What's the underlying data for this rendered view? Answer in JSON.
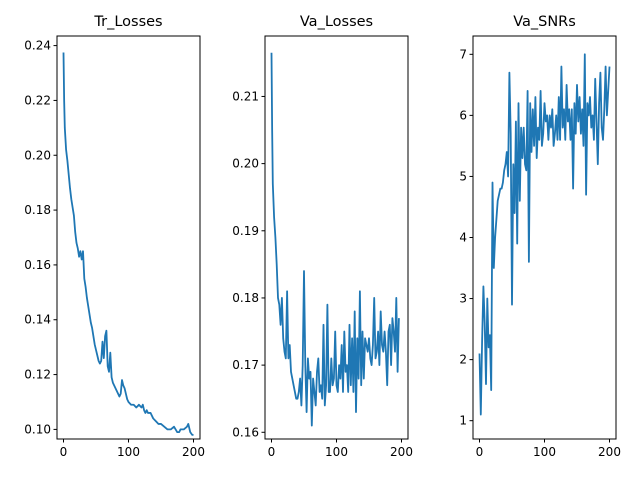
{
  "chart_data": [
    {
      "type": "line",
      "title": "Tr_Losses",
      "xlabel": "",
      "ylabel": "",
      "xlim": [
        -10,
        210
      ],
      "ylim": [
        0.0965,
        0.2435
      ],
      "xticks": [
        0,
        100,
        200
      ],
      "yticks": [
        0.1,
        0.12,
        0.14,
        0.16,
        0.18,
        0.2,
        0.22,
        0.24
      ],
      "ytick_labels": [
        "0.10",
        "0.12",
        "0.14",
        "0.16",
        "0.18",
        "0.20",
        "0.22",
        "0.24"
      ],
      "grid": false,
      "color": "#1f77b4",
      "series": [
        {
          "x": [
            0,
            1,
            2,
            4,
            6,
            8,
            10,
            12,
            14,
            16,
            18,
            20,
            22,
            24,
            26,
            28,
            30,
            32,
            34,
            36,
            38,
            40,
            42,
            44,
            46,
            48,
            50,
            52,
            54,
            56,
            58,
            60,
            62,
            64,
            66,
            68,
            70,
            72,
            74,
            76,
            78,
            80,
            82,
            84,
            86,
            88,
            90,
            92,
            94,
            96,
            98,
            100,
            104,
            108,
            112,
            116,
            120,
            122,
            124,
            126,
            128,
            130,
            134,
            138,
            142,
            146,
            150,
            155,
            160,
            165,
            170,
            175,
            178,
            180,
            185,
            190,
            192,
            195,
            198,
            200
          ],
          "y": [
            0.2375,
            0.22,
            0.21,
            0.202,
            0.198,
            0.193,
            0.188,
            0.184,
            0.181,
            0.178,
            0.172,
            0.168,
            0.166,
            0.163,
            0.165,
            0.162,
            0.165,
            0.155,
            0.152,
            0.148,
            0.145,
            0.142,
            0.139,
            0.137,
            0.134,
            0.131,
            0.129,
            0.127,
            0.125,
            0.124,
            0.125,
            0.132,
            0.126,
            0.134,
            0.136,
            0.123,
            0.121,
            0.128,
            0.119,
            0.117,
            0.116,
            0.115,
            0.114,
            0.113,
            0.112,
            0.113,
            0.118,
            0.116,
            0.115,
            0.113,
            0.111,
            0.11,
            0.109,
            0.109,
            0.108,
            0.109,
            0.108,
            0.109,
            0.107,
            0.106,
            0.107,
            0.106,
            0.106,
            0.104,
            0.103,
            0.102,
            0.102,
            0.101,
            0.1,
            0.1,
            0.101,
            0.099,
            0.099,
            0.1,
            0.1,
            0.101,
            0.102,
            0.099,
            0.098,
            0.098
          ]
        }
      ]
    },
    {
      "type": "line",
      "title": "Va_Losses",
      "xlabel": "",
      "ylabel": "",
      "xlim": [
        -10,
        210
      ],
      "ylim": [
        0.159,
        0.219
      ],
      "xticks": [
        0,
        100,
        200
      ],
      "yticks": [
        0.16,
        0.17,
        0.18,
        0.19,
        0.2,
        0.21
      ],
      "ytick_labels": [
        "0.16",
        "0.17",
        "0.18",
        "0.19",
        "0.20",
        "0.21"
      ],
      "grid": false,
      "color": "#1f77b4",
      "series": [
        {
          "x": [
            0,
            1,
            2,
            4,
            6,
            8,
            10,
            12,
            14,
            16,
            18,
            20,
            22,
            24,
            26,
            28,
            30,
            32,
            34,
            36,
            38,
            40,
            42,
            44,
            46,
            48,
            50,
            52,
            54,
            56,
            58,
            60,
            62,
            64,
            66,
            68,
            70,
            72,
            74,
            76,
            78,
            80,
            82,
            84,
            86,
            88,
            90,
            92,
            94,
            96,
            98,
            100,
            102,
            104,
            106,
            108,
            110,
            112,
            114,
            116,
            118,
            120,
            122,
            124,
            126,
            128,
            130,
            132,
            134,
            136,
            138,
            140,
            142,
            144,
            146,
            148,
            150,
            152,
            154,
            156,
            158,
            160,
            162,
            164,
            166,
            168,
            170,
            172,
            174,
            176,
            178,
            180,
            182,
            184,
            186,
            188,
            190,
            192,
            194,
            196
          ],
          "y": [
            0.2165,
            0.205,
            0.197,
            0.192,
            0.189,
            0.185,
            0.18,
            0.179,
            0.176,
            0.18,
            0.174,
            0.172,
            0.171,
            0.181,
            0.171,
            0.173,
            0.169,
            0.168,
            0.167,
            0.166,
            0.165,
            0.165,
            0.166,
            0.168,
            0.164,
            0.17,
            0.184,
            0.17,
            0.163,
            0.171,
            0.168,
            0.169,
            0.161,
            0.168,
            0.166,
            0.164,
            0.169,
            0.171,
            0.166,
            0.167,
            0.165,
            0.176,
            0.164,
            0.167,
            0.179,
            0.166,
            0.166,
            0.171,
            0.167,
            0.168,
            0.175,
            0.167,
            0.166,
            0.17,
            0.168,
            0.173,
            0.166,
            0.175,
            0.169,
            0.17,
            0.166,
            0.176,
            0.167,
            0.174,
            0.166,
            0.178,
            0.163,
            0.174,
            0.168,
            0.181,
            0.167,
            0.175,
            0.168,
            0.174,
            0.173,
            0.172,
            0.174,
            0.171,
            0.17,
            0.173,
            0.18,
            0.171,
            0.172,
            0.175,
            0.17,
            0.178,
            0.173,
            0.172,
            0.175,
            0.172,
            0.167,
            0.175,
            0.176,
            0.17,
            0.177,
            0.175,
            0.172,
            0.18,
            0.169,
            0.177
          ]
        }
      ]
    },
    {
      "type": "line",
      "title": "Va_SNRs",
      "xlabel": "",
      "ylabel": "",
      "xlim": [
        -10,
        210
      ],
      "ylim": [
        0.7,
        7.3
      ],
      "xticks": [
        0,
        100,
        200
      ],
      "yticks": [
        1,
        2,
        3,
        4,
        5,
        6,
        7
      ],
      "ytick_labels": [
        "1",
        "2",
        "3",
        "4",
        "5",
        "6",
        "7"
      ],
      "grid": false,
      "color": "#1f77b4",
      "series": [
        {
          "x": [
            0,
            2,
            4,
            6,
            8,
            10,
            12,
            14,
            16,
            18,
            20,
            22,
            24,
            26,
            28,
            30,
            32,
            34,
            36,
            38,
            40,
            42,
            44,
            46,
            48,
            50,
            52,
            54,
            56,
            58,
            60,
            62,
            64,
            66,
            68,
            70,
            72,
            74,
            76,
            78,
            80,
            82,
            84,
            86,
            88,
            90,
            92,
            94,
            96,
            98,
            100,
            102,
            104,
            106,
            108,
            110,
            112,
            114,
            116,
            118,
            120,
            122,
            124,
            126,
            128,
            130,
            132,
            134,
            136,
            138,
            140,
            142,
            144,
            146,
            148,
            150,
            152,
            154,
            156,
            158,
            160,
            162,
            164,
            166,
            168,
            170,
            172,
            174,
            176,
            178,
            180,
            182,
            184,
            186,
            188,
            190,
            192,
            194,
            196,
            198,
            200
          ],
          "y": [
            2.1,
            1.1,
            2.3,
            3.2,
            2.6,
            1.6,
            3.0,
            2.2,
            2.4,
            1.5,
            4.9,
            3.5,
            4.0,
            4.3,
            4.6,
            4.7,
            4.8,
            4.8,
            4.9,
            5.1,
            5.2,
            5.4,
            5.0,
            6.7,
            5.7,
            2.9,
            5.2,
            4.4,
            5.9,
            3.9,
            6.2,
            4.6,
            5.8,
            5.3,
            5.8,
            5.2,
            5.1,
            6.4,
            3.6,
            6.2,
            5.4,
            6.1,
            5.5,
            6.3,
            5.3,
            5.8,
            5.6,
            6.4,
            5.5,
            5.7,
            6.2,
            5.9,
            6.0,
            5.6,
            6.0,
            5.8,
            6.1,
            5.5,
            5.7,
            6.0,
            5.6,
            6.3,
            5.6,
            6.8,
            5.8,
            6.1,
            5.6,
            6.5,
            5.9,
            6.1,
            5.6,
            6.1,
            4.8,
            6.2,
            5.7,
            6.5,
            5.9,
            6.3,
            5.7,
            6.1,
            5.5,
            7.0,
            4.7,
            6.2,
            6.0,
            6.3,
            5.8,
            6.0,
            5.6,
            6.6,
            5.9,
            5.2,
            6.2,
            6.7,
            5.8,
            5.6,
            6.1,
            6.8,
            6.0,
            6.4,
            6.8
          ]
        }
      ]
    }
  ]
}
